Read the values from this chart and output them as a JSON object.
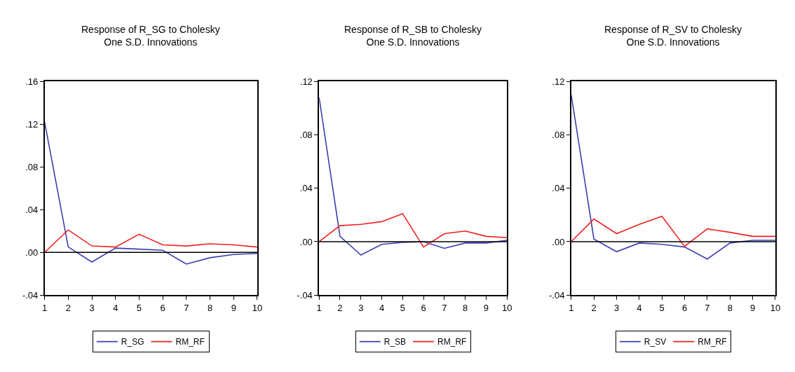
{
  "chart_data": [
    {
      "type": "line",
      "title": "Response of R_SG to Cholesky\nOne S.D. Innovations",
      "x": [
        1,
        2,
        3,
        4,
        5,
        6,
        7,
        8,
        9,
        10
      ],
      "xlim": [
        1,
        10
      ],
      "xticks": [
        1,
        2,
        3,
        4,
        5,
        6,
        7,
        8,
        9,
        10
      ],
      "ylim": [
        -0.04,
        0.16
      ],
      "yticks": [
        {
          "value": -0.04,
          "label": "-.04"
        },
        {
          "value": 0,
          "label": ".00"
        },
        {
          "value": 0.04,
          "label": ".04"
        },
        {
          "value": 0.08,
          "label": ".08"
        },
        {
          "value": 0.12,
          "label": ".12"
        },
        {
          "value": 0.16,
          "label": ".16"
        }
      ],
      "legend": "bottom",
      "marker": "none",
      "line_style": "solid",
      "series": [
        {
          "name": "R_SG",
          "color": "#3a3fb0",
          "values": [
            0.122,
            0.005,
            -0.009,
            0.004,
            0.003,
            0.002,
            -0.011,
            -0.005,
            -0.002,
            -0.001
          ]
        },
        {
          "name": "RM_RF",
          "color": "#f02020",
          "values": [
            0,
            0.021,
            0.006,
            0.005,
            0.017,
            0.007,
            0.006,
            0.008,
            0.007,
            0.005
          ]
        }
      ],
      "ref_lines": [
        {
          "axis": "y",
          "value": 0,
          "color": "#000000"
        }
      ]
    },
    {
      "type": "line",
      "title": "Response of R_SB to Cholesky\nOne S.D. Innovations",
      "x": [
        1,
        2,
        3,
        4,
        5,
        6,
        7,
        8,
        9,
        10
      ],
      "xlim": [
        1,
        10
      ],
      "xticks": [
        1,
        2,
        3,
        4,
        5,
        6,
        7,
        8,
        9,
        10
      ],
      "ylim": [
        -0.04,
        0.12
      ],
      "yticks": [
        {
          "value": -0.04,
          "label": "-.04"
        },
        {
          "value": 0,
          "label": ".00"
        },
        {
          "value": 0.04,
          "label": ".04"
        },
        {
          "value": 0.08,
          "label": ".08"
        },
        {
          "value": 0.12,
          "label": ".12"
        }
      ],
      "legend": "bottom",
      "marker": "none",
      "line_style": "solid",
      "series": [
        {
          "name": "R_SB",
          "color": "#3a3fb0",
          "values": [
            0.108,
            0.004,
            -0.01,
            -0.002,
            -0.0005,
            0,
            -0.005,
            -0.001,
            -0.001,
            0.001
          ]
        },
        {
          "name": "RM_RF",
          "color": "#f02020",
          "values": [
            0,
            0.012,
            0.013,
            0.015,
            0.021,
            -0.004,
            0.006,
            0.008,
            0.004,
            0.003
          ]
        }
      ],
      "ref_lines": [
        {
          "axis": "y",
          "value": 0,
          "color": "#000000"
        }
      ]
    },
    {
      "type": "line",
      "title": "Response of R_SV to Cholesky\nOne S.D. Innovations",
      "x": [
        1,
        2,
        3,
        4,
        5,
        6,
        7,
        8,
        9,
        10
      ],
      "xlim": [
        1,
        10
      ],
      "xticks": [
        1,
        2,
        3,
        4,
        5,
        6,
        7,
        8,
        9,
        10
      ],
      "ylim": [
        -0.04,
        0.12
      ],
      "yticks": [
        {
          "value": -0.04,
          "label": "-.04"
        },
        {
          "value": 0,
          "label": ".00"
        },
        {
          "value": 0.04,
          "label": ".04"
        },
        {
          "value": 0.08,
          "label": ".08"
        },
        {
          "value": 0.12,
          "label": ".12"
        }
      ],
      "legend": "bottom",
      "marker": "none",
      "line_style": "solid",
      "series": [
        {
          "name": "R_SV",
          "color": "#3a3fb0",
          "values": [
            0.11,
            0.002,
            -0.0075,
            -0.001,
            -0.002,
            -0.004,
            -0.013,
            -0.001,
            0.001,
            0.001
          ]
        },
        {
          "name": "RM_RF",
          "color": "#f02020",
          "values": [
            0,
            0.017,
            0.006,
            0.013,
            0.019,
            -0.0035,
            0.0096,
            0.007,
            0.004,
            0.004
          ]
        }
      ],
      "ref_lines": [
        {
          "axis": "y",
          "value": 0,
          "color": "#000000"
        }
      ]
    }
  ]
}
